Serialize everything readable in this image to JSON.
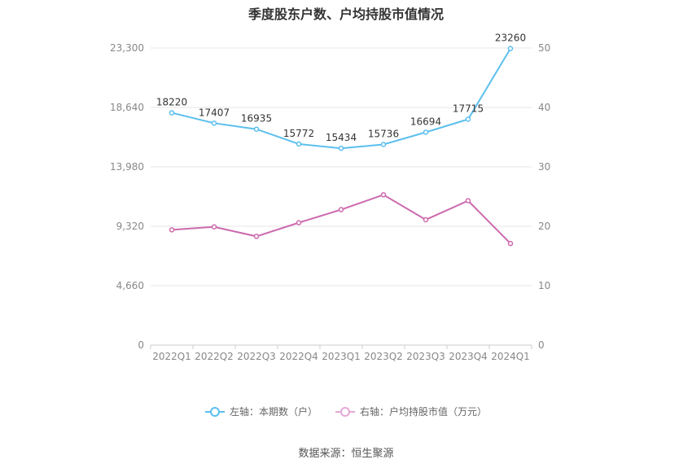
{
  "chart_data": {
    "type": "line",
    "title": "季度股东户数、户均持股市值情况",
    "categories": [
      "2022Q1",
      "2022Q2",
      "2022Q3",
      "2022Q4",
      "2023Q1",
      "2023Q2",
      "2023Q3",
      "2023Q4",
      "2024Q1"
    ],
    "left_axis": {
      "ticks": [
        "0",
        "4,660",
        "9,320",
        "13,980",
        "18,640",
        "23,300"
      ],
      "ylim": [
        0,
        23300
      ]
    },
    "right_axis": {
      "ticks": [
        "0",
        "10",
        "20",
        "30",
        "40",
        "50"
      ],
      "ylim": [
        0,
        50
      ]
    },
    "grid": true,
    "legend_position": "bottom",
    "series": [
      {
        "name": "左轴：本期数（户）",
        "axis": "left",
        "color": "#5bbfee",
        "values": [
          18220,
          17407,
          16935,
          15772,
          15434,
          15736,
          16694,
          17715,
          23260
        ],
        "labels": [
          "18220",
          "17407",
          "16935",
          "15772",
          "15434",
          "15736",
          "16694",
          "17715",
          "23260"
        ]
      },
      {
        "name": "右轴：户均持股市值（万元）",
        "axis": "right",
        "color": "#cc6aae",
        "values": [
          19.4,
          19.9,
          18.3,
          20.6,
          22.8,
          25.3,
          21.1,
          24.3,
          17.1
        ]
      }
    ]
  },
  "legend": {
    "left_label": "左轴：本期数（户）",
    "right_label": "右轴：户均持股市值（万元）"
  },
  "source": "数据来源：恒生聚源"
}
